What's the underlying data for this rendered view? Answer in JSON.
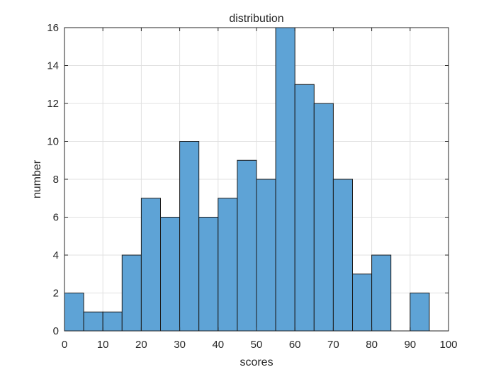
{
  "chart_data": {
    "type": "bar",
    "title": "distribution",
    "xlabel": "scores",
    "ylabel": "number",
    "bin_edges": [
      0,
      5,
      10,
      15,
      20,
      25,
      30,
      35,
      40,
      45,
      50,
      55,
      60,
      65,
      70,
      75,
      80,
      85,
      90,
      95,
      100
    ],
    "values": [
      2,
      1,
      1,
      4,
      7,
      6,
      10,
      6,
      7,
      9,
      8,
      16,
      13,
      12,
      8,
      3,
      4,
      0,
      2,
      0
    ],
    "xlim": [
      0,
      100
    ],
    "ylim": [
      0,
      16
    ],
    "xticks": [
      "0",
      "10",
      "20",
      "30",
      "40",
      "50",
      "60",
      "70",
      "80",
      "90",
      "100"
    ],
    "yticks": [
      "0",
      "2",
      "4",
      "6",
      "8",
      "10",
      "12",
      "14",
      "16"
    ],
    "grid": true,
    "bar_color": "#5ea3d6",
    "edge_color": "#1a1a1a",
    "grid_color": "#e0e0e0"
  }
}
